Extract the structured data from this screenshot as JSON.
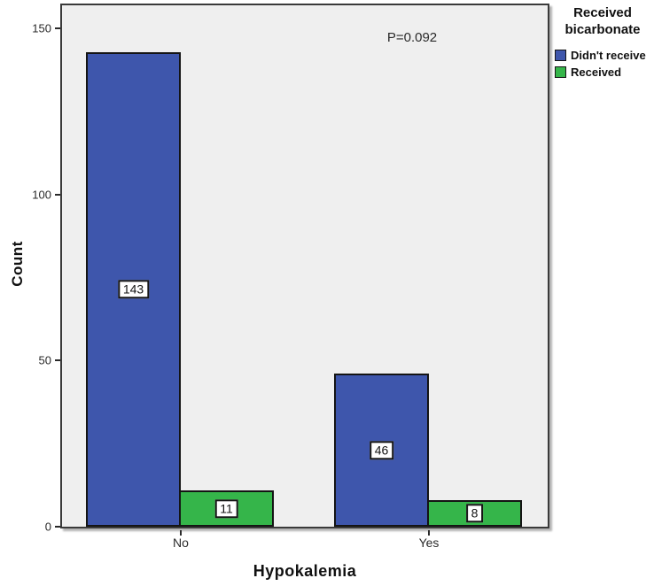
{
  "chart_data": {
    "type": "bar",
    "title": "",
    "xlabel": "Hypokalemia",
    "ylabel": "Count",
    "categories": [
      "No",
      "Yes"
    ],
    "series": [
      {
        "name": "Didn't receive",
        "color": "#3e56ac",
        "values": [
          143,
          46
        ]
      },
      {
        "name": "Received",
        "color": "#35b54a",
        "values": [
          11,
          8
        ]
      }
    ],
    "y_ticks": [
      0,
      50,
      100,
      150
    ],
    "ylim": [
      0,
      157
    ],
    "grid": false,
    "plot_background": "#efefef",
    "annotation": "P=0.092",
    "bar_labels_shown": true,
    "legend": {
      "title": "Received bicarbonate",
      "entries": [
        "Didn't receive",
        "Received"
      ],
      "position": "top-right-outside"
    }
  }
}
